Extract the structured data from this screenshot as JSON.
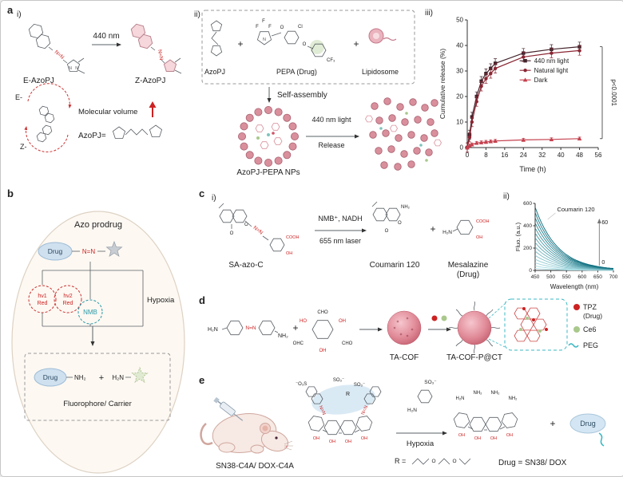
{
  "figure": {
    "panel_labels": {
      "a": "a",
      "b": "b",
      "c": "c",
      "d": "d",
      "e": "e"
    },
    "roman": {
      "i": "i)",
      "ii": "ii)",
      "iii": "iii)"
    }
  },
  "atoms": {
    "azo": "N=N",
    "n": "N",
    "o": "O",
    "f": "F",
    "cl": "Cl",
    "cf3": "CF₃",
    "nh2": "NH₂",
    "h2n": "H₂N",
    "oh": "OH",
    "ho": "HO",
    "cho": "CHO",
    "ohc": "OHC",
    "cooh": "COOH",
    "so3": "SO₃⁻",
    "o3s": "⁻O₃S",
    "r": "R"
  },
  "panel_a": {
    "wavelength_arrow": "440 nm",
    "e_azopj": "E-AzoPJ",
    "z_azopj": "Z-AzoPJ",
    "e_form": "E-",
    "z_form": "Z-",
    "molecular_volume": "Molecular volume",
    "azopj_def": "AzoPJ=",
    "azopj": "AzoPJ",
    "plus": "+",
    "pepa": "PEPA (Drug)",
    "lipidosome": "Lipidosome",
    "self_assembly": "Self-assembly",
    "light_440": "440 nm light",
    "release": "Release",
    "nps_label": "AzoPJ-PEPA NPs"
  },
  "panel_b": {
    "title": "Azo prodrug",
    "drug": "Drug",
    "hv1": "hν1",
    "hv2": "hν2",
    "red": "Red",
    "nmb": "NMB",
    "hypoxia": "Hypoxia",
    "plus": "+",
    "products_caption": "Fluorophore/ Carrier"
  },
  "panel_c": {
    "sa_azo_c": "SA-azo-C",
    "conditions_top": "NMB⁺, NADH",
    "conditions_bottom": "655 nm laser",
    "coumarin": "Coumarin 120",
    "plus": "+",
    "mesalazine": "Mesalazine",
    "drug_paren": "(Drug)"
  },
  "panel_d": {
    "plus": "+",
    "ta_cof": "TA-COF",
    "ta_cof_p": "TA-COF-P@CT",
    "legend": {
      "tpz": "TPZ",
      "tpz_sub": "(Drug)",
      "ce6": "Ce6",
      "peg": "PEG"
    }
  },
  "panel_e": {
    "compound": "SN38-C4A/ DOX-C4A",
    "hypoxia": "Hypoxia",
    "plus": "+",
    "drug": "Drug",
    "r_def": "R =",
    "drug_def": "Drug = SN38/ DOX"
  },
  "chart_data": [
    {
      "id": "release",
      "type": "line",
      "title": "",
      "xlabel": "Time (h)",
      "ylabel": "Cumulative release (%)",
      "xlim": [
        0,
        56
      ],
      "ylim": [
        0,
        50
      ],
      "xticks": [
        0,
        8,
        16,
        24,
        32,
        40,
        48,
        56
      ],
      "yticks": [
        0,
        10,
        20,
        30,
        40,
        50
      ],
      "annotation": "p<0.0001",
      "legend_position": "center-right",
      "grid": false,
      "series": [
        {
          "name": "440 nm light",
          "color": "#43232b",
          "marker": "square",
          "yerr": 1.8,
          "x": [
            0,
            1,
            2,
            4,
            6,
            8,
            10,
            12,
            24,
            36,
            48
          ],
          "y": [
            0,
            5,
            12,
            20,
            26,
            29,
            31,
            33,
            37,
            38.5,
            39.5
          ]
        },
        {
          "name": "Natural light",
          "color": "#8b2633",
          "marker": "circle",
          "yerr": 1.8,
          "x": [
            0,
            1,
            2,
            4,
            6,
            8,
            10,
            12,
            24,
            36,
            48
          ],
          "y": [
            0,
            4,
            10,
            18,
            24,
            27,
            29,
            31,
            35.5,
            37,
            38
          ]
        },
        {
          "name": "Dark",
          "color": "#c4404e",
          "marker": "triangle",
          "yerr": 0.6,
          "x": [
            0,
            1,
            2,
            4,
            6,
            8,
            10,
            12,
            24,
            36,
            48
          ],
          "y": [
            0,
            0.8,
            1.2,
            1.8,
            2,
            2.2,
            2.4,
            2.6,
            3,
            3.2,
            3.5
          ]
        }
      ]
    },
    {
      "id": "fluorescence",
      "type": "line",
      "title": "",
      "xlabel": "Wavelength (nm)",
      "ylabel": "Fluo. (a.u.)",
      "xlim": [
        450,
        700
      ],
      "ylim": [
        0,
        600
      ],
      "xticks": [
        450,
        500,
        550,
        600,
        650,
        700
      ],
      "yticks": [
        0,
        200,
        400,
        600
      ],
      "annotation": "Coumarin 120",
      "grid": false,
      "time_arrow": {
        "start_label": "0",
        "end_label": "60"
      },
      "curve_peaks": [
        18,
        40,
        68,
        100,
        135,
        172,
        210,
        250,
        292,
        335,
        380,
        426,
        472,
        518,
        565
      ],
      "decay_nm": 72,
      "color_light": "#b5e6ec",
      "color_dark": "#0a6b7c"
    }
  ]
}
